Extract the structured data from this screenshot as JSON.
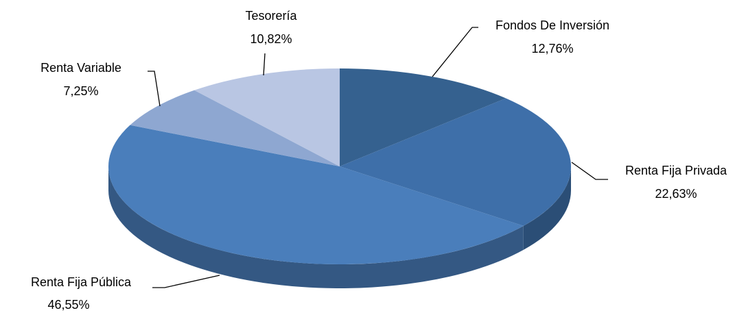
{
  "chart_data": {
    "type": "pie",
    "categories": [
      "Fondos De Inversión",
      "Renta Fija Privada",
      "Renta Fija Pública",
      "Renta Variable",
      "Tesorería"
    ],
    "values": [
      12.76,
      22.63,
      46.55,
      7.25,
      10.82
    ],
    "value_labels": [
      "12,76%",
      "22,63%",
      "46,55%",
      "7,25%",
      "10,82%"
    ],
    "colors": [
      "#35618f",
      "#3e6fa9",
      "#4a7ebb",
      "#8ea7d1",
      "#b9c6e3"
    ]
  }
}
